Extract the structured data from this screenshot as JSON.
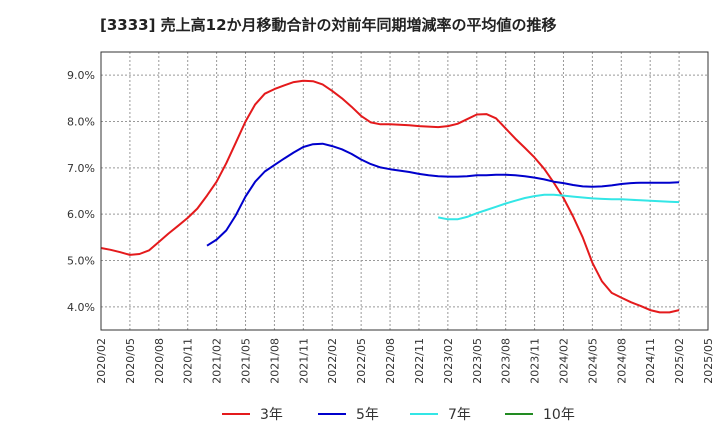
{
  "chart_data": {
    "type": "line",
    "title": "[3333]  売上高12か月移動合計の対前年同期増減率の平均値の推移",
    "xlabel": "",
    "ylabel": "",
    "ylim": [
      3.5,
      9.5
    ],
    "grid": true,
    "legend_placement": "bottom",
    "y_ticks": [
      "4.0%",
      "5.0%",
      "6.0%",
      "7.0%",
      "8.0%",
      "9.0%"
    ],
    "x_ticks": [
      "2020/02",
      "2020/05",
      "2020/08",
      "2020/11",
      "2021/02",
      "2021/05",
      "2021/08",
      "2021/11",
      "2022/02",
      "2022/05",
      "2022/08",
      "2022/11",
      "2023/02",
      "2023/05",
      "2023/08",
      "2023/11",
      "2024/02",
      "2024/05",
      "2024/08",
      "2024/11",
      "2025/02",
      "2025/05"
    ],
    "series": [
      {
        "name": "3年",
        "color": "#e41a1c",
        "points": [
          [
            "2020/02",
            5.27
          ],
          [
            "2020/03",
            5.23
          ],
          [
            "2020/04",
            5.18
          ],
          [
            "2020/05",
            5.12
          ],
          [
            "2020/06",
            5.14
          ],
          [
            "2020/07",
            5.22
          ],
          [
            "2020/08",
            5.4
          ],
          [
            "2020/09",
            5.58
          ],
          [
            "2020/10",
            5.75
          ],
          [
            "2020/11",
            5.92
          ],
          [
            "2020/12",
            6.12
          ],
          [
            "2021/01",
            6.4
          ],
          [
            "2021/02",
            6.7
          ],
          [
            "2021/03",
            7.1
          ],
          [
            "2021/04",
            7.55
          ],
          [
            "2021/05",
            8.0
          ],
          [
            "2021/06",
            8.37
          ],
          [
            "2021/07",
            8.6
          ],
          [
            "2021/08",
            8.7
          ],
          [
            "2021/09",
            8.78
          ],
          [
            "2021/10",
            8.85
          ],
          [
            "2021/11",
            8.88
          ],
          [
            "2021/12",
            8.87
          ],
          [
            "2022/01",
            8.8
          ],
          [
            "2022/02",
            8.66
          ],
          [
            "2022/03",
            8.5
          ],
          [
            "2022/04",
            8.32
          ],
          [
            "2022/05",
            8.12
          ],
          [
            "2022/06",
            7.98
          ],
          [
            "2022/07",
            7.94
          ],
          [
            "2022/08",
            7.94
          ],
          [
            "2022/09",
            7.93
          ],
          [
            "2022/10",
            7.92
          ],
          [
            "2022/11",
            7.9
          ],
          [
            "2022/12",
            7.89
          ],
          [
            "2023/01",
            7.88
          ],
          [
            "2023/02",
            7.9
          ],
          [
            "2023/03",
            7.95
          ],
          [
            "2023/04",
            8.05
          ],
          [
            "2023/05",
            8.15
          ],
          [
            "2023/06",
            8.16
          ],
          [
            "2023/07",
            8.07
          ],
          [
            "2023/08",
            7.85
          ],
          [
            "2023/09",
            7.63
          ],
          [
            "2023/10",
            7.43
          ],
          [
            "2023/11",
            7.22
          ],
          [
            "2023/12",
            6.98
          ],
          [
            "2024/01",
            6.68
          ],
          [
            "2024/02",
            6.35
          ],
          [
            "2024/03",
            5.95
          ],
          [
            "2024/04",
            5.5
          ],
          [
            "2024/05",
            4.95
          ],
          [
            "2024/06",
            4.55
          ],
          [
            "2024/07",
            4.3
          ],
          [
            "2024/08",
            4.2
          ],
          [
            "2024/09",
            4.1
          ],
          [
            "2024/10",
            4.02
          ],
          [
            "2024/11",
            3.93
          ],
          [
            "2024/12",
            3.88
          ],
          [
            "2025/01",
            3.88
          ],
          [
            "2025/02",
            3.93
          ]
        ]
      },
      {
        "name": "5年",
        "color": "#0000cc",
        "points": [
          [
            "2021/01",
            5.32
          ],
          [
            "2021/02",
            5.45
          ],
          [
            "2021/03",
            5.65
          ],
          [
            "2021/04",
            5.98
          ],
          [
            "2021/05",
            6.38
          ],
          [
            "2021/06",
            6.7
          ],
          [
            "2021/07",
            6.92
          ],
          [
            "2021/08",
            7.06
          ],
          [
            "2021/09",
            7.2
          ],
          [
            "2021/10",
            7.33
          ],
          [
            "2021/11",
            7.45
          ],
          [
            "2021/12",
            7.51
          ],
          [
            "2022/01",
            7.52
          ],
          [
            "2022/02",
            7.47
          ],
          [
            "2022/03",
            7.4
          ],
          [
            "2022/04",
            7.3
          ],
          [
            "2022/05",
            7.18
          ],
          [
            "2022/06",
            7.08
          ],
          [
            "2022/07",
            7.01
          ],
          [
            "2022/08",
            6.97
          ],
          [
            "2022/09",
            6.94
          ],
          [
            "2022/10",
            6.91
          ],
          [
            "2022/11",
            6.87
          ],
          [
            "2022/12",
            6.84
          ],
          [
            "2023/01",
            6.82
          ],
          [
            "2023/02",
            6.81
          ],
          [
            "2023/03",
            6.81
          ],
          [
            "2023/04",
            6.82
          ],
          [
            "2023/05",
            6.84
          ],
          [
            "2023/06",
            6.84
          ],
          [
            "2023/07",
            6.85
          ],
          [
            "2023/08",
            6.85
          ],
          [
            "2023/09",
            6.84
          ],
          [
            "2023/10",
            6.82
          ],
          [
            "2023/11",
            6.79
          ],
          [
            "2023/12",
            6.75
          ],
          [
            "2024/01",
            6.7
          ],
          [
            "2024/02",
            6.67
          ],
          [
            "2024/03",
            6.63
          ],
          [
            "2024/04",
            6.6
          ],
          [
            "2024/05",
            6.59
          ],
          [
            "2024/06",
            6.6
          ],
          [
            "2024/07",
            6.62
          ],
          [
            "2024/08",
            6.65
          ],
          [
            "2024/09",
            6.67
          ],
          [
            "2024/10",
            6.68
          ],
          [
            "2024/11",
            6.68
          ],
          [
            "2024/12",
            6.68
          ],
          [
            "2025/01",
            6.68
          ],
          [
            "2025/02",
            6.69
          ]
        ]
      },
      {
        "name": "7年",
        "color": "#33e6e6",
        "points": [
          [
            "2023/01",
            5.93
          ],
          [
            "2023/02",
            5.89
          ],
          [
            "2023/03",
            5.89
          ],
          [
            "2023/04",
            5.94
          ],
          [
            "2023/05",
            6.02
          ],
          [
            "2023/06",
            6.09
          ],
          [
            "2023/07",
            6.16
          ],
          [
            "2023/08",
            6.23
          ],
          [
            "2023/09",
            6.29
          ],
          [
            "2023/10",
            6.35
          ],
          [
            "2023/11",
            6.39
          ],
          [
            "2023/12",
            6.42
          ],
          [
            "2024/01",
            6.42
          ],
          [
            "2024/02",
            6.4
          ],
          [
            "2024/03",
            6.38
          ],
          [
            "2024/04",
            6.36
          ],
          [
            "2024/05",
            6.34
          ],
          [
            "2024/06",
            6.33
          ],
          [
            "2024/07",
            6.32
          ],
          [
            "2024/08",
            6.32
          ],
          [
            "2024/09",
            6.31
          ],
          [
            "2024/10",
            6.3
          ],
          [
            "2024/11",
            6.29
          ],
          [
            "2024/12",
            6.28
          ],
          [
            "2025/01",
            6.27
          ],
          [
            "2025/02",
            6.26
          ]
        ]
      },
      {
        "name": "10年",
        "color": "#228b22",
        "points": []
      }
    ]
  }
}
